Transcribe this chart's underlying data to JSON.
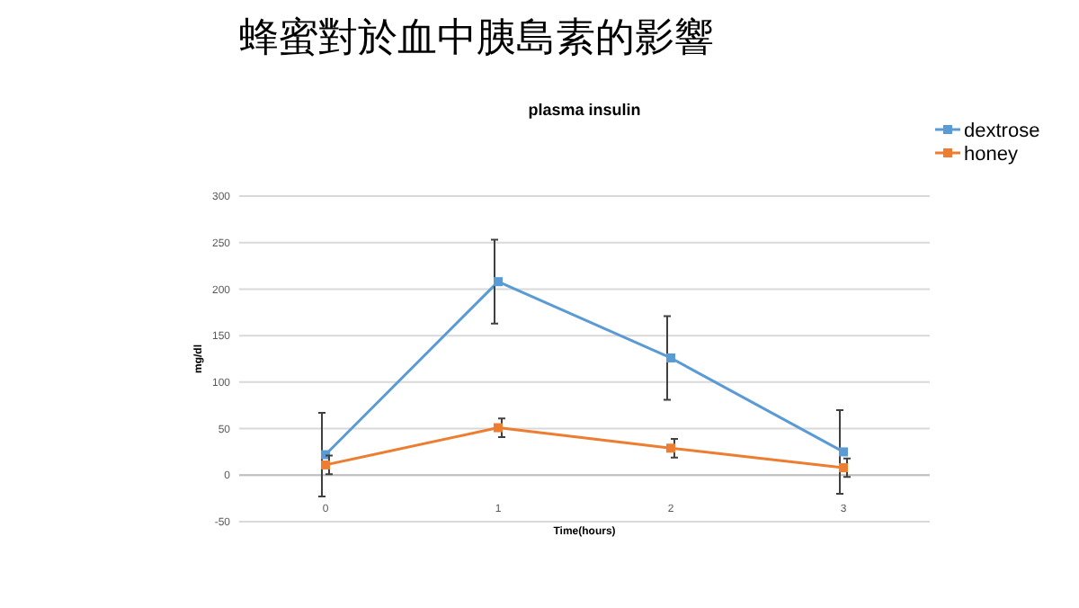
{
  "chart_data": {
    "type": "line",
    "title": "蜂蜜對於血中胰島素的影響",
    "subtitle": "plasma insulin",
    "xlabel": "Time(hours)",
    "ylabel": "mg/dl",
    "categories": [
      "0",
      "1",
      "2",
      "3"
    ],
    "series": [
      {
        "name": "dextrose",
        "color": "#5b9bd5",
        "values": [
          22,
          208,
          126,
          25
        ],
        "errors": [
          45,
          45,
          45,
          45
        ]
      },
      {
        "name": "honey",
        "color": "#ed7d31",
        "values": [
          11,
          51,
          29,
          8
        ],
        "errors": [
          10,
          10,
          10,
          10
        ]
      }
    ],
    "ylim": [
      -50,
      300
    ],
    "yticks": [
      -50,
      0,
      50,
      100,
      150,
      200,
      250,
      300
    ],
    "grid": "y",
    "legend": "top right",
    "marker": "square"
  }
}
